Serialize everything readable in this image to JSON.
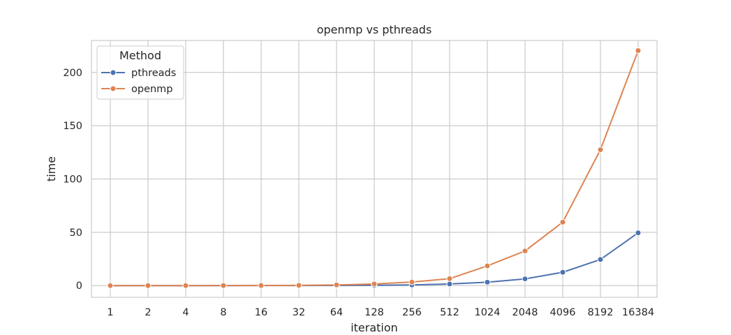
{
  "chart_data": {
    "type": "line",
    "title": "openmp vs pthreads",
    "xlabel": "iteration",
    "ylabel": "time",
    "categories": [
      "1",
      "2",
      "4",
      "8",
      "16",
      "32",
      "64",
      "128",
      "256",
      "512",
      "1024",
      "2048",
      "4096",
      "8192",
      "16384"
    ],
    "x_scale": "categorical",
    "ylim": [
      -11,
      230
    ],
    "y_ticks": [
      0,
      50,
      100,
      150,
      200
    ],
    "grid": true,
    "legend": {
      "title": "Method",
      "placement": "top-left"
    },
    "series": [
      {
        "name": "pthreads",
        "color": "#4c72b0",
        "values": [
          0.0,
          0.0,
          0.0,
          0.0,
          0.05,
          0.08,
          0.15,
          0.3,
          0.6,
          1.5,
          3.2,
          6.3,
          12.5,
          24.5,
          49.5
        ]
      },
      {
        "name": "openmp",
        "color": "#dd8452",
        "values": [
          0.0,
          0.0,
          0.0,
          0.05,
          0.1,
          0.2,
          0.6,
          1.5,
          3.3,
          6.5,
          18.5,
          32.5,
          59.5,
          127.5,
          220.5
        ]
      }
    ]
  }
}
